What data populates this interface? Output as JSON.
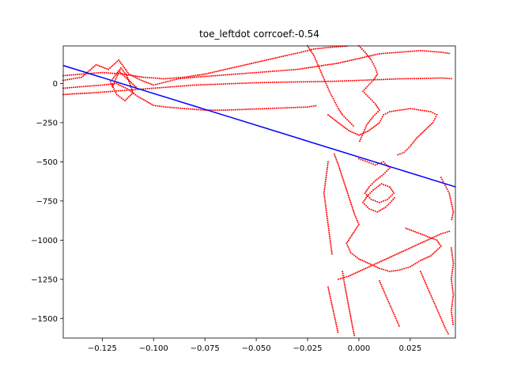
{
  "chart_data": {
    "type": "scatter",
    "title": "toe_leftdot corrcoef:-0.54",
    "xlabel": "",
    "ylabel": "",
    "xlim": [
      -0.144,
      0.047
    ],
    "ylim": [
      -1625,
      240
    ],
    "xticks": [
      -0.125,
      -0.1,
      -0.075,
      -0.05,
      -0.025,
      0.0,
      0.025
    ],
    "xtick_labels": [
      "−0.125",
      "−0.100",
      "−0.075",
      "−0.050",
      "−0.025",
      "0.000",
      "0.025"
    ],
    "yticks": [
      0,
      -250,
      -500,
      -750,
      -1000,
      -1250,
      -1500
    ],
    "ytick_labels": [
      "0",
      "−250",
      "−500",
      "−750",
      "−1000",
      "−1250",
      "−1500"
    ],
    "grid": false,
    "legend": "none",
    "series": [
      {
        "kind": "scatter",
        "color": "#ff0000",
        "paths": [
          [
            [
              -0.144,
              20
            ],
            [
              -0.135,
              40
            ],
            [
              -0.128,
              120
            ],
            [
              -0.122,
              90
            ],
            [
              -0.117,
              150
            ],
            [
              -0.112,
              60
            ],
            [
              -0.106,
              20
            ],
            [
              -0.1,
              -10
            ],
            [
              -0.094,
              10
            ],
            [
              -0.088,
              30
            ],
            [
              -0.08,
              40
            ],
            [
              -0.07,
              50
            ],
            [
              -0.06,
              60
            ],
            [
              -0.05,
              70
            ],
            [
              -0.04,
              80
            ],
            [
              -0.03,
              90
            ],
            [
              -0.02,
              110
            ],
            [
              -0.01,
              130
            ],
            [
              0.0,
              160
            ],
            [
              0.01,
              190
            ],
            [
              0.02,
              200
            ],
            [
              0.03,
              210
            ],
            [
              0.04,
              200
            ],
            [
              0.045,
              190
            ]
          ],
          [
            [
              -0.144,
              -30
            ],
            [
              -0.135,
              -20
            ],
            [
              -0.125,
              -10
            ],
            [
              -0.118,
              0
            ],
            [
              -0.112,
              -40
            ],
            [
              -0.108,
              -80
            ],
            [
              -0.104,
              -110
            ],
            [
              -0.1,
              -140
            ],
            [
              -0.094,
              -150
            ],
            [
              -0.085,
              -160
            ],
            [
              -0.075,
              -170
            ],
            [
              -0.065,
              -170
            ],
            [
              -0.055,
              -165
            ],
            [
              -0.045,
              -160
            ],
            [
              -0.035,
              -155
            ],
            [
              -0.025,
              -150
            ],
            [
              -0.02,
              -140
            ]
          ],
          [
            [
              -0.144,
              -70
            ],
            [
              -0.13,
              -60
            ],
            [
              -0.12,
              -50
            ],
            [
              -0.11,
              -40
            ],
            [
              -0.1,
              -30
            ],
            [
              -0.09,
              -20
            ],
            [
              -0.08,
              -10
            ],
            [
              -0.07,
              -5
            ],
            [
              -0.06,
              0
            ],
            [
              -0.05,
              5
            ],
            [
              -0.04,
              8
            ],
            [
              -0.03,
              10
            ],
            [
              -0.02,
              12
            ],
            [
              -0.01,
              15
            ],
            [
              0.0,
              20
            ],
            [
              0.01,
              25
            ],
            [
              0.02,
              30
            ],
            [
              0.03,
              32
            ],
            [
              0.04,
              35
            ],
            [
              0.046,
              30
            ]
          ],
          [
            [
              -0.144,
              50
            ],
            [
              -0.135,
              60
            ],
            [
              -0.125,
              70
            ],
            [
              -0.115,
              60
            ],
            [
              -0.105,
              40
            ],
            [
              -0.095,
              30
            ],
            [
              -0.085,
              40
            ],
            [
              -0.075,
              60
            ],
            [
              -0.065,
              90
            ],
            [
              -0.055,
              120
            ],
            [
              -0.045,
              150
            ],
            [
              -0.035,
              180
            ],
            [
              -0.028,
              200
            ],
            [
              -0.022,
              220
            ],
            [
              -0.015,
              230
            ],
            [
              -0.005,
              240
            ]
          ],
          [
            [
              -0.12,
              -20
            ],
            [
              -0.116,
              100
            ],
            [
              -0.113,
              50
            ],
            [
              -0.11,
              -60
            ],
            [
              -0.114,
              -110
            ],
            [
              -0.118,
              -70
            ],
            [
              -0.121,
              10
            ],
            [
              -0.117,
              80
            ],
            [
              -0.112,
              20
            ],
            [
              -0.108,
              -30
            ]
          ],
          [
            [
              -0.025,
              240
            ],
            [
              -0.022,
              180
            ],
            [
              -0.02,
              120
            ],
            [
              -0.018,
              60
            ],
            [
              -0.016,
              0
            ],
            [
              -0.014,
              -60
            ],
            [
              -0.012,
              -110
            ],
            [
              -0.01,
              -160
            ],
            [
              -0.008,
              -200
            ],
            [
              -0.005,
              -240
            ],
            [
              -0.002,
              -280
            ]
          ],
          [
            [
              0.0,
              240
            ],
            [
              0.003,
              200
            ],
            [
              0.006,
              150
            ],
            [
              0.008,
              100
            ],
            [
              0.009,
              60
            ],
            [
              0.007,
              20
            ],
            [
              0.004,
              -20
            ],
            [
              0.002,
              -50
            ],
            [
              0.005,
              -90
            ],
            [
              0.008,
              -130
            ],
            [
              0.01,
              -170
            ],
            [
              0.007,
              -210
            ],
            [
              0.004,
              -260
            ],
            [
              0.002,
              -320
            ],
            [
              0.0,
              -380
            ]
          ],
          [
            [
              -0.015,
              -200
            ],
            [
              -0.01,
              -250
            ],
            [
              -0.005,
              -300
            ],
            [
              0.0,
              -330
            ],
            [
              0.005,
              -300
            ],
            [
              0.01,
              -250
            ],
            [
              0.012,
              -200
            ],
            [
              0.015,
              -180
            ],
            [
              0.02,
              -170
            ],
            [
              0.025,
              -160
            ],
            [
              0.03,
              -170
            ],
            [
              0.035,
              -180
            ],
            [
              0.038,
              -200
            ],
            [
              0.036,
              -250
            ],
            [
              0.032,
              -300
            ],
            [
              0.028,
              -350
            ],
            [
              0.025,
              -400
            ],
            [
              0.022,
              -440
            ],
            [
              0.018,
              -460
            ]
          ],
          [
            [
              0.0,
              -480
            ],
            [
              0.004,
              -500
            ],
            [
              0.008,
              -520
            ],
            [
              0.012,
              -500
            ],
            [
              0.015,
              -540
            ],
            [
              0.012,
              -580
            ],
            [
              0.008,
              -620
            ],
            [
              0.005,
              -660
            ],
            [
              0.003,
              -700
            ],
            [
              0.006,
              -740
            ],
            [
              0.01,
              -760
            ],
            [
              0.014,
              -740
            ],
            [
              0.017,
              -700
            ],
            [
              0.015,
              -660
            ],
            [
              0.011,
              -640
            ],
            [
              0.007,
              -680
            ],
            [
              0.004,
              -720
            ],
            [
              0.002,
              -760
            ],
            [
              0.005,
              -800
            ],
            [
              0.009,
              -820
            ],
            [
              0.013,
              -790
            ],
            [
              0.016,
              -750
            ],
            [
              0.018,
              -720
            ]
          ],
          [
            [
              -0.012,
              -450
            ],
            [
              -0.01,
              -520
            ],
            [
              -0.008,
              -600
            ],
            [
              -0.006,
              -680
            ],
            [
              -0.004,
              -760
            ],
            [
              -0.002,
              -840
            ],
            [
              0.0,
              -900
            ],
            [
              -0.003,
              -960
            ],
            [
              -0.006,
              -1020
            ],
            [
              -0.004,
              -1080
            ],
            [
              0.0,
              -1120
            ],
            [
              0.005,
              -1150
            ],
            [
              0.01,
              -1180
            ],
            [
              0.015,
              -1200
            ],
            [
              0.02,
              -1190
            ],
            [
              0.025,
              -1170
            ],
            [
              0.03,
              -1130
            ],
            [
              0.035,
              -1100
            ],
            [
              0.04,
              -1040
            ],
            [
              0.038,
              -1000
            ],
            [
              0.03,
              -960
            ],
            [
              0.022,
              -920
            ]
          ],
          [
            [
              -0.01,
              -1250
            ],
            [
              -0.005,
              -1230
            ],
            [
              0.0,
              -1200
            ],
            [
              0.005,
              -1170
            ],
            [
              0.01,
              -1140
            ],
            [
              0.015,
              -1110
            ],
            [
              0.02,
              -1080
            ],
            [
              0.025,
              -1050
            ],
            [
              0.03,
              -1020
            ],
            [
              0.035,
              -990
            ],
            [
              0.04,
              -960
            ],
            [
              0.045,
              -940
            ]
          ],
          [
            [
              -0.015,
              -1300
            ],
            [
              -0.014,
              -1360
            ],
            [
              -0.013,
              -1420
            ],
            [
              -0.012,
              -1480
            ],
            [
              -0.011,
              -1540
            ],
            [
              -0.01,
              -1600
            ]
          ],
          [
            [
              -0.008,
              -1200
            ],
            [
              -0.007,
              -1280
            ],
            [
              -0.006,
              -1350
            ],
            [
              -0.005,
              -1420
            ],
            [
              -0.004,
              -1490
            ],
            [
              -0.003,
              -1560
            ],
            [
              -0.002,
              -1620
            ]
          ],
          [
            [
              0.01,
              -1260
            ],
            [
              0.012,
              -1320
            ],
            [
              0.014,
              -1380
            ],
            [
              0.016,
              -1440
            ],
            [
              0.018,
              -1500
            ],
            [
              0.02,
              -1560
            ]
          ],
          [
            [
              0.03,
              -1200
            ],
            [
              0.032,
              -1260
            ],
            [
              0.034,
              -1320
            ],
            [
              0.036,
              -1380
            ],
            [
              0.038,
              -1440
            ],
            [
              0.04,
              -1500
            ],
            [
              0.042,
              -1560
            ],
            [
              0.044,
              -1610
            ]
          ],
          [
            [
              0.045,
              -1050
            ],
            [
              0.046,
              -1150
            ],
            [
              0.045,
              -1250
            ],
            [
              0.046,
              -1350
            ],
            [
              0.045,
              -1450
            ],
            [
              0.046,
              -1550
            ]
          ],
          [
            [
              0.04,
              -600
            ],
            [
              0.042,
              -650
            ],
            [
              0.044,
              -700
            ],
            [
              0.045,
              -760
            ],
            [
              0.046,
              -820
            ],
            [
              0.045,
              -880
            ]
          ],
          [
            [
              -0.015,
              -500
            ],
            [
              -0.016,
              -600
            ],
            [
              -0.017,
              -700
            ],
            [
              -0.016,
              -800
            ],
            [
              -0.015,
              -900
            ],
            [
              -0.014,
              -1000
            ],
            [
              -0.013,
              -1100
            ]
          ]
        ]
      },
      {
        "kind": "line",
        "color": "#0000ff",
        "x": [
          -0.144,
          0.047
        ],
        "y": [
          115,
          -660
        ]
      }
    ]
  }
}
